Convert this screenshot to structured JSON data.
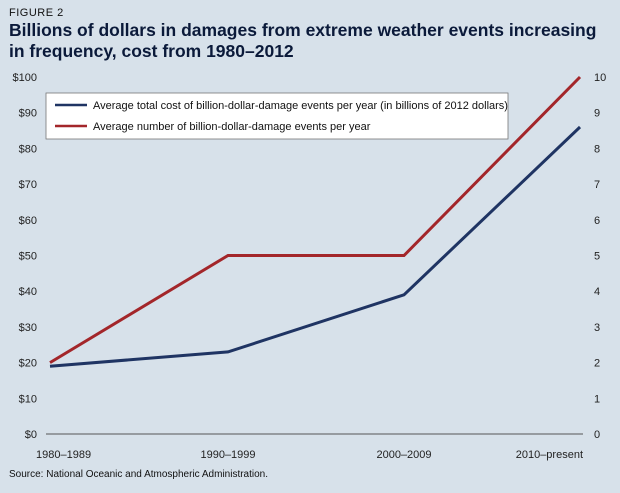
{
  "figure_label": "FIGURE 2",
  "source": "Source: National Oceanic and Atmospheric Administration.",
  "colors": {
    "cost": "#1f3463",
    "count": "#a3262a",
    "background": "#d7e1ea",
    "axis": "#555555"
  },
  "chart_data": {
    "type": "line",
    "title": "Billions of dollars in damages from extreme weather events increasing in frequency, cost from 1980–2012",
    "categories": [
      "1980–1989",
      "1990–1999",
      "2000–2009",
      "2010–present"
    ],
    "series": [
      {
        "name": "Average total cost of billion-dollar-damage events per year (in billions of 2012  dollars)",
        "axis": "left",
        "values": [
          19,
          23,
          39,
          86
        ]
      },
      {
        "name": "Average number of billion-dollar-damage events per year",
        "axis": "right",
        "values": [
          2,
          5,
          5,
          10
        ]
      }
    ],
    "y_left": {
      "ylim": [
        0,
        100
      ],
      "ticks": [
        "$0",
        "$10",
        "$20",
        "$30",
        "$40",
        "$50",
        "$60",
        "$70",
        "$80",
        "$90",
        "$100"
      ]
    },
    "y_right": {
      "ylim": [
        0,
        10
      ],
      "ticks": [
        "0",
        "1",
        "2",
        "3",
        "4",
        "5",
        "6",
        "7",
        "8",
        "9",
        "10"
      ]
    },
    "legend_position": "top-left",
    "grid": false
  }
}
